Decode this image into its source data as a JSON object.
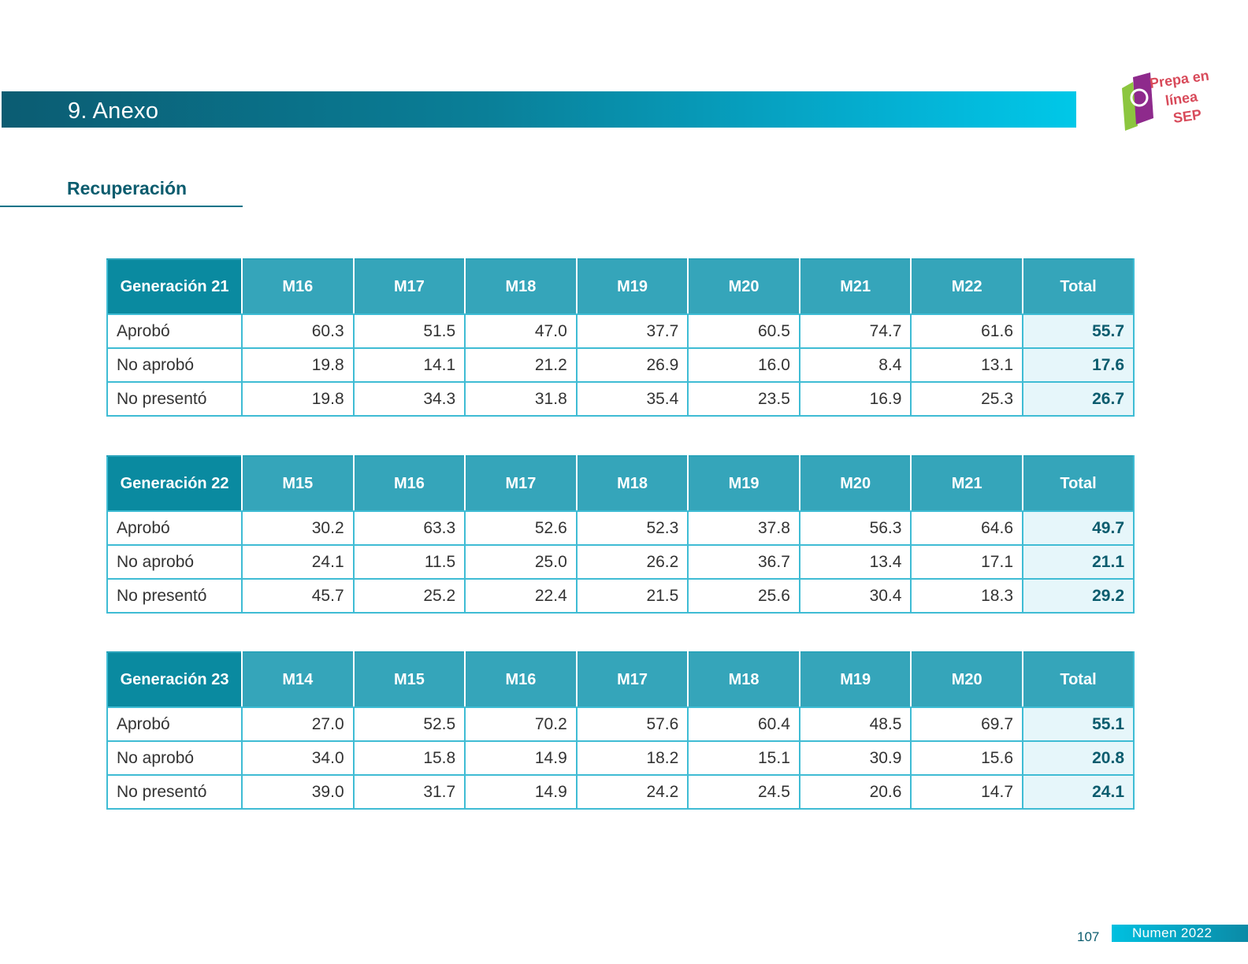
{
  "header": {
    "title": "9. Anexo"
  },
  "logo": {
    "alt": "Prepa en línea SEP",
    "lines": [
      "Prepa en",
      "línea",
      "SEP"
    ]
  },
  "section": {
    "title": "Recuperación"
  },
  "tables": [
    {
      "header_cells": [
        "Generación 21",
        "M16",
        "M17",
        "M18",
        "M19",
        "M20",
        "M21",
        "M22",
        "Total"
      ],
      "rows": [
        [
          "Aprobó",
          "60.3",
          "51.5",
          "47.0",
          "37.7",
          "60.5",
          "74.7",
          "61.6",
          "55.7"
        ],
        [
          "No aprobó",
          "19.8",
          "14.1",
          "21.2",
          "26.9",
          "16.0",
          "8.4",
          "13.1",
          "17.6"
        ],
        [
          "No presentó",
          "19.8",
          "34.3",
          "31.8",
          "35.4",
          "23.5",
          "16.9",
          "25.3",
          "26.7"
        ]
      ]
    },
    {
      "header_cells": [
        "Generación 22",
        "M15",
        "M16",
        "M17",
        "M18",
        "M19",
        "M20",
        "M21",
        "Total"
      ],
      "rows": [
        [
          "Aprobó",
          "30.2",
          "63.3",
          "52.6",
          "52.3",
          "37.8",
          "56.3",
          "64.6",
          "49.7"
        ],
        [
          "No aprobó",
          "24.1",
          "11.5",
          "25.0",
          "26.2",
          "36.7",
          "13.4",
          "17.1",
          "21.1"
        ],
        [
          "No presentó",
          "45.7",
          "25.2",
          "22.4",
          "21.5",
          "25.6",
          "30.4",
          "18.3",
          "29.2"
        ]
      ]
    },
    {
      "header_cells": [
        "Generación 23",
        "M14",
        "M15",
        "M16",
        "M17",
        "M18",
        "M19",
        "M20",
        "Total"
      ],
      "rows": [
        [
          "Aprobó",
          "27.0",
          "52.5",
          "70.2",
          "57.6",
          "60.4",
          "48.5",
          "69.7",
          "55.1"
        ],
        [
          "No aprobó",
          "34.0",
          "15.8",
          "14.9",
          "18.2",
          "15.1",
          "30.9",
          "15.6",
          "20.8"
        ],
        [
          "No presentó",
          "39.0",
          "31.7",
          "14.9",
          "24.2",
          "24.5",
          "20.6",
          "14.7",
          "24.1"
        ]
      ]
    }
  ],
  "footer": {
    "page_number": "107",
    "publication": "Numen 2022"
  }
}
